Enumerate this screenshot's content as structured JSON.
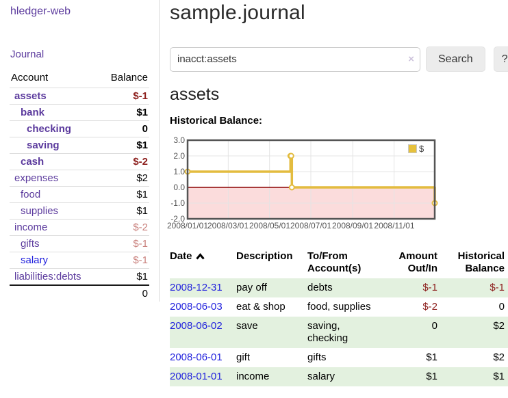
{
  "app": {
    "brand": "hledger-web",
    "nav_journal": "Journal"
  },
  "sidebar": {
    "col_account": "Account",
    "col_balance": "Balance",
    "accounts": [
      {
        "name": "assets",
        "balance": "$-1",
        "depth": 1
      },
      {
        "name": "bank",
        "balance": "$1",
        "depth": 2
      },
      {
        "name": "checking",
        "balance": "0",
        "depth": 3
      },
      {
        "name": "saving",
        "balance": "$1",
        "depth": 3
      },
      {
        "name": "cash",
        "balance": "$-2",
        "depth": 2
      },
      {
        "name": "expenses",
        "balance": "$2",
        "depth": 1
      },
      {
        "name": "food",
        "balance": "$1",
        "depth": 2
      },
      {
        "name": "supplies",
        "balance": "$1",
        "depth": 2
      },
      {
        "name": "income",
        "balance": "$-2",
        "depth": 1
      },
      {
        "name": "gifts",
        "balance": "$-1",
        "depth": 2
      },
      {
        "name": "salary",
        "balance": "$-1",
        "depth": 2
      },
      {
        "name": "liabilities:debts",
        "balance": "$1",
        "depth": 1
      }
    ],
    "total": "0"
  },
  "header": {
    "title": "sample.journal"
  },
  "search": {
    "value": "inacct:assets",
    "clear_icon": "×",
    "button_label": "Search",
    "help_label": "?"
  },
  "account_page": {
    "title": "assets",
    "chart_label": "Historical Balance:"
  },
  "chart_data": {
    "type": "line",
    "title": "Historical Balance",
    "style": "step-after",
    "series": [
      {
        "name": "$",
        "color": "#e3bc3f",
        "points": [
          [
            "2008-01-01",
            1
          ],
          [
            "2008-06-01",
            2
          ],
          [
            "2008-06-02",
            2
          ],
          [
            "2008-06-03",
            0
          ],
          [
            "2008-12-31",
            -1
          ]
        ]
      }
    ],
    "x_range": [
      "2008-01-01",
      "2008-12-31"
    ],
    "x_ticks": [
      "2008/01/01",
      "2008/03/01",
      "2008/05/01",
      "2008/07/01",
      "2008/09/01",
      "2008/11/01"
    ],
    "y_ticks": [
      3.0,
      2.0,
      1.0,
      0.0,
      -1.0,
      -2.0
    ],
    "ylim": [
      -2,
      3
    ],
    "grid": true,
    "legend": {
      "label": "$",
      "position": "top-right"
    },
    "negative_region": {
      "from": 0,
      "to": -2,
      "fill": "#fbdcdc",
      "zero_line_color": "#8b0000"
    }
  },
  "register": {
    "columns": [
      "Date",
      "Description",
      "To/From Account(s)",
      "Amount Out/In",
      "Historical Balance"
    ],
    "rows": [
      {
        "date": "2008-12-31",
        "description": "pay off",
        "accounts": "debts",
        "amount": "$-1",
        "balance": "$-1"
      },
      {
        "date": "2008-06-03",
        "description": "eat & shop",
        "accounts": "food, supplies",
        "amount": "$-2",
        "balance": "0"
      },
      {
        "date": "2008-06-02",
        "description": "save",
        "accounts": "saving, checking",
        "amount": "0",
        "balance": "$2"
      },
      {
        "date": "2008-06-01",
        "description": "gift",
        "accounts": "gifts",
        "amount": "$1",
        "balance": "$2"
      },
      {
        "date": "2008-01-01",
        "description": "income",
        "accounts": "salary",
        "amount": "$1",
        "balance": "$1"
      }
    ]
  },
  "colors": {
    "link_purple": "#5b3a9d",
    "link_blue": "#2222dd",
    "negative": "#8c1e1c",
    "negative_faded": "#c9807c",
    "row_green": "#e3f1df",
    "chart_line_yellow": "#e3bc3f",
    "chart_negative_fill": "#fbdcdc",
    "chart_zero_line": "#8b0000"
  }
}
